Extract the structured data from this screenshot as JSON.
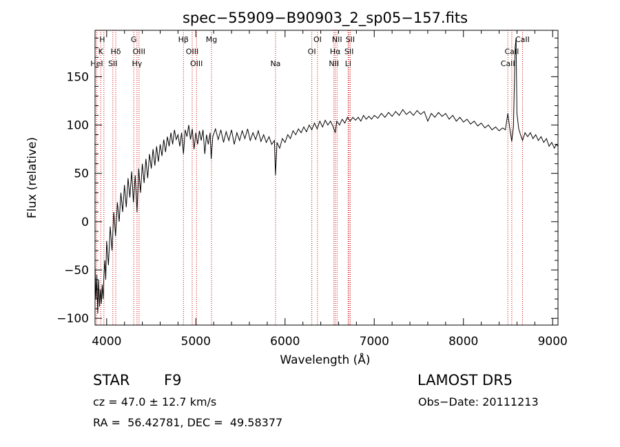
{
  "chart_data": {
    "type": "line",
    "title": "spec−55909−B90903_2_sp05−157.fits",
    "xlabel": "Wavelength (Å)",
    "ylabel": "Flux (relative)",
    "xlim": [
      3870,
      9060
    ],
    "ylim": [
      -107,
      198
    ],
    "xticks": [
      4000,
      5000,
      6000,
      7000,
      8000,
      9000
    ],
    "yticks": [
      -100,
      -50,
      0,
      50,
      100,
      150
    ],
    "ytick_labels": [
      "−100",
      "−50",
      "0",
      "50",
      "100",
      "150"
    ],
    "series": [
      {
        "color": "#000000",
        "points": [
          [
            3870,
            -45
          ],
          [
            3880,
            -80
          ],
          [
            3890,
            -55
          ],
          [
            3900,
            -95
          ],
          [
            3910,
            -60
          ],
          [
            3920,
            -88
          ],
          [
            3930,
            -70
          ],
          [
            3940,
            -85
          ],
          [
            3950,
            -65
          ],
          [
            3960,
            -80
          ],
          [
            3970,
            -55
          ],
          [
            3980,
            -40
          ],
          [
            3990,
            -60
          ],
          [
            4000,
            -20
          ],
          [
            4020,
            -45
          ],
          [
            4040,
            -5
          ],
          [
            4060,
            -30
          ],
          [
            4080,
            10
          ],
          [
            4100,
            -15
          ],
          [
            4120,
            20
          ],
          [
            4140,
            0
          ],
          [
            4160,
            30
          ],
          [
            4180,
            10
          ],
          [
            4200,
            38
          ],
          [
            4220,
            15
          ],
          [
            4240,
            45
          ],
          [
            4260,
            25
          ],
          [
            4280,
            52
          ],
          [
            4300,
            20
          ],
          [
            4320,
            48
          ],
          [
            4340,
            10
          ],
          [
            4360,
            55
          ],
          [
            4380,
            30
          ],
          [
            4400,
            60
          ],
          [
            4420,
            40
          ],
          [
            4440,
            65
          ],
          [
            4460,
            45
          ],
          [
            4480,
            70
          ],
          [
            4500,
            55
          ],
          [
            4520,
            75
          ],
          [
            4540,
            58
          ],
          [
            4560,
            78
          ],
          [
            4580,
            62
          ],
          [
            4600,
            80
          ],
          [
            4620,
            68
          ],
          [
            4640,
            85
          ],
          [
            4660,
            72
          ],
          [
            4680,
            88
          ],
          [
            4700,
            78
          ],
          [
            4720,
            92
          ],
          [
            4740,
            80
          ],
          [
            4760,
            95
          ],
          [
            4780,
            85
          ],
          [
            4800,
            90
          ],
          [
            4820,
            78
          ],
          [
            4840,
            92
          ],
          [
            4861,
            70
          ],
          [
            4880,
            95
          ],
          [
            4900,
            88
          ],
          [
            4920,
            100
          ],
          [
            4940,
            85
          ],
          [
            4960,
            96
          ],
          [
            4980,
            75
          ],
          [
            5000,
            92
          ],
          [
            5020,
            80
          ],
          [
            5040,
            94
          ],
          [
            5060,
            84
          ],
          [
            5080,
            95
          ],
          [
            5100,
            70
          ],
          [
            5120,
            90
          ],
          [
            5140,
            80
          ],
          [
            5160,
            92
          ],
          [
            5172,
            65
          ],
          [
            5190,
            88
          ],
          [
            5220,
            96
          ],
          [
            5250,
            85
          ],
          [
            5280,
            95
          ],
          [
            5310,
            82
          ],
          [
            5340,
            93
          ],
          [
            5370,
            84
          ],
          [
            5400,
            95
          ],
          [
            5430,
            80
          ],
          [
            5460,
            92
          ],
          [
            5490,
            84
          ],
          [
            5520,
            94
          ],
          [
            5550,
            86
          ],
          [
            5580,
            96
          ],
          [
            5610,
            84
          ],
          [
            5640,
            92
          ],
          [
            5670,
            85
          ],
          [
            5700,
            94
          ],
          [
            5730,
            83
          ],
          [
            5760,
            90
          ],
          [
            5790,
            82
          ],
          [
            5820,
            88
          ],
          [
            5850,
            80
          ],
          [
            5880,
            84
          ],
          [
            5893,
            48
          ],
          [
            5910,
            82
          ],
          [
            5940,
            76
          ],
          [
            5970,
            86
          ],
          [
            6000,
            82
          ],
          [
            6030,
            90
          ],
          [
            6060,
            86
          ],
          [
            6090,
            94
          ],
          [
            6120,
            90
          ],
          [
            6150,
            96
          ],
          [
            6180,
            92
          ],
          [
            6210,
            98
          ],
          [
            6240,
            93
          ],
          [
            6270,
            100
          ],
          [
            6300,
            95
          ],
          [
            6330,
            102
          ],
          [
            6360,
            96
          ],
          [
            6390,
            104
          ],
          [
            6420,
            98
          ],
          [
            6450,
            105
          ],
          [
            6480,
            100
          ],
          [
            6510,
            104
          ],
          [
            6540,
            98
          ],
          [
            6563,
            92
          ],
          [
            6580,
            104
          ],
          [
            6610,
            100
          ],
          [
            6640,
            106
          ],
          [
            6670,
            102
          ],
          [
            6700,
            108
          ],
          [
            6730,
            104
          ],
          [
            6760,
            108
          ],
          [
            6790,
            105
          ],
          [
            6820,
            108
          ],
          [
            6850,
            104
          ],
          [
            6880,
            110
          ],
          [
            6910,
            106
          ],
          [
            6940,
            109
          ],
          [
            6970,
            106
          ],
          [
            7000,
            110
          ],
          [
            7040,
            107
          ],
          [
            7080,
            112
          ],
          [
            7120,
            108
          ],
          [
            7160,
            113
          ],
          [
            7200,
            109
          ],
          [
            7240,
            114
          ],
          [
            7280,
            110
          ],
          [
            7320,
            116
          ],
          [
            7360,
            111
          ],
          [
            7400,
            114
          ],
          [
            7440,
            110
          ],
          [
            7480,
            115
          ],
          [
            7520,
            111
          ],
          [
            7560,
            114
          ],
          [
            7600,
            104
          ],
          [
            7640,
            112
          ],
          [
            7680,
            108
          ],
          [
            7720,
            113
          ],
          [
            7760,
            109
          ],
          [
            7800,
            112
          ],
          [
            7840,
            106
          ],
          [
            7880,
            110
          ],
          [
            7920,
            104
          ],
          [
            7960,
            108
          ],
          [
            8000,
            103
          ],
          [
            8040,
            106
          ],
          [
            8080,
            101
          ],
          [
            8120,
            104
          ],
          [
            8160,
            99
          ],
          [
            8200,
            102
          ],
          [
            8240,
            97
          ],
          [
            8280,
            100
          ],
          [
            8320,
            95
          ],
          [
            8360,
            98
          ],
          [
            8400,
            94
          ],
          [
            8440,
            97
          ],
          [
            8470,
            95
          ],
          [
            8498,
            112
          ],
          [
            8520,
            96
          ],
          [
            8542,
            83
          ],
          [
            8560,
            98
          ],
          [
            8580,
            180
          ],
          [
            8590,
            190
          ],
          [
            8600,
            112
          ],
          [
            8620,
            96
          ],
          [
            8640,
            90
          ],
          [
            8662,
            84
          ],
          [
            8690,
            92
          ],
          [
            8720,
            88
          ],
          [
            8750,
            92
          ],
          [
            8780,
            86
          ],
          [
            8810,
            90
          ],
          [
            8840,
            84
          ],
          [
            8870,
            88
          ],
          [
            8900,
            82
          ],
          [
            8930,
            86
          ],
          [
            8960,
            78
          ],
          [
            8990,
            82
          ],
          [
            9020,
            76
          ],
          [
            9040,
            80
          ],
          [
            9060,
            78
          ]
        ]
      }
    ],
    "lines": {
      "color": "#cc0000",
      "x": [
        3934,
        3969,
        3889,
        4102,
        4069,
        4304,
        4340,
        4363,
        4861,
        4959,
        5007,
        5175,
        5893,
        6300,
        6364,
        6548,
        6563,
        6583,
        6707,
        6717,
        6731,
        8498,
        8542,
        8662
      ],
      "labels": [
        {
          "text": "H",
          "x": 3950,
          "row": 0
        },
        {
          "text": "K",
          "x": 3934,
          "row": 1
        },
        {
          "text": "HeI",
          "x": 3889,
          "row": 2
        },
        {
          "text": "Hδ",
          "x": 4102,
          "row": 1
        },
        {
          "text": "SII",
          "x": 4069,
          "row": 2
        },
        {
          "text": "G",
          "x": 4304,
          "row": 0
        },
        {
          "text": "OIII",
          "x": 4363,
          "row": 1
        },
        {
          "text": "Hγ",
          "x": 4340,
          "row": 2
        },
        {
          "text": "Hβ",
          "x": 4861,
          "row": 0
        },
        {
          "text": "OIII",
          "x": 4959,
          "row": 1
        },
        {
          "text": "OIII",
          "x": 5007,
          "row": 2
        },
        {
          "text": "Mg",
          "x": 5175,
          "row": 0
        },
        {
          "text": "Na",
          "x": 5893,
          "row": 2
        },
        {
          "text": "OI",
          "x": 6364,
          "row": 0
        },
        {
          "text": "OI",
          "x": 6300,
          "row": 1
        },
        {
          "text": "NII",
          "x": 6583,
          "row": 0
        },
        {
          "text": "Hα",
          "x": 6563,
          "row": 1
        },
        {
          "text": "NII",
          "x": 6548,
          "row": 2
        },
        {
          "text": "SII",
          "x": 6731,
          "row": 0
        },
        {
          "text": "SII",
          "x": 6717,
          "row": 1
        },
        {
          "text": "Li",
          "x": 6707,
          "row": 2
        },
        {
          "text": "CaII",
          "x": 8662,
          "row": 0
        },
        {
          "text": "CaII",
          "x": 8542,
          "row": 1
        },
        {
          "text": "CaII",
          "x": 8498,
          "row": 2
        }
      ]
    }
  },
  "info": {
    "class": "STAR",
    "subclass": "F9",
    "survey": "LAMOST DR5",
    "cz": "cz = 47.0 ± 12.7 km/s",
    "obs_date": "Obs−Date: 20111213",
    "coords": "RA =  56.42781, DEC =  49.58377"
  }
}
